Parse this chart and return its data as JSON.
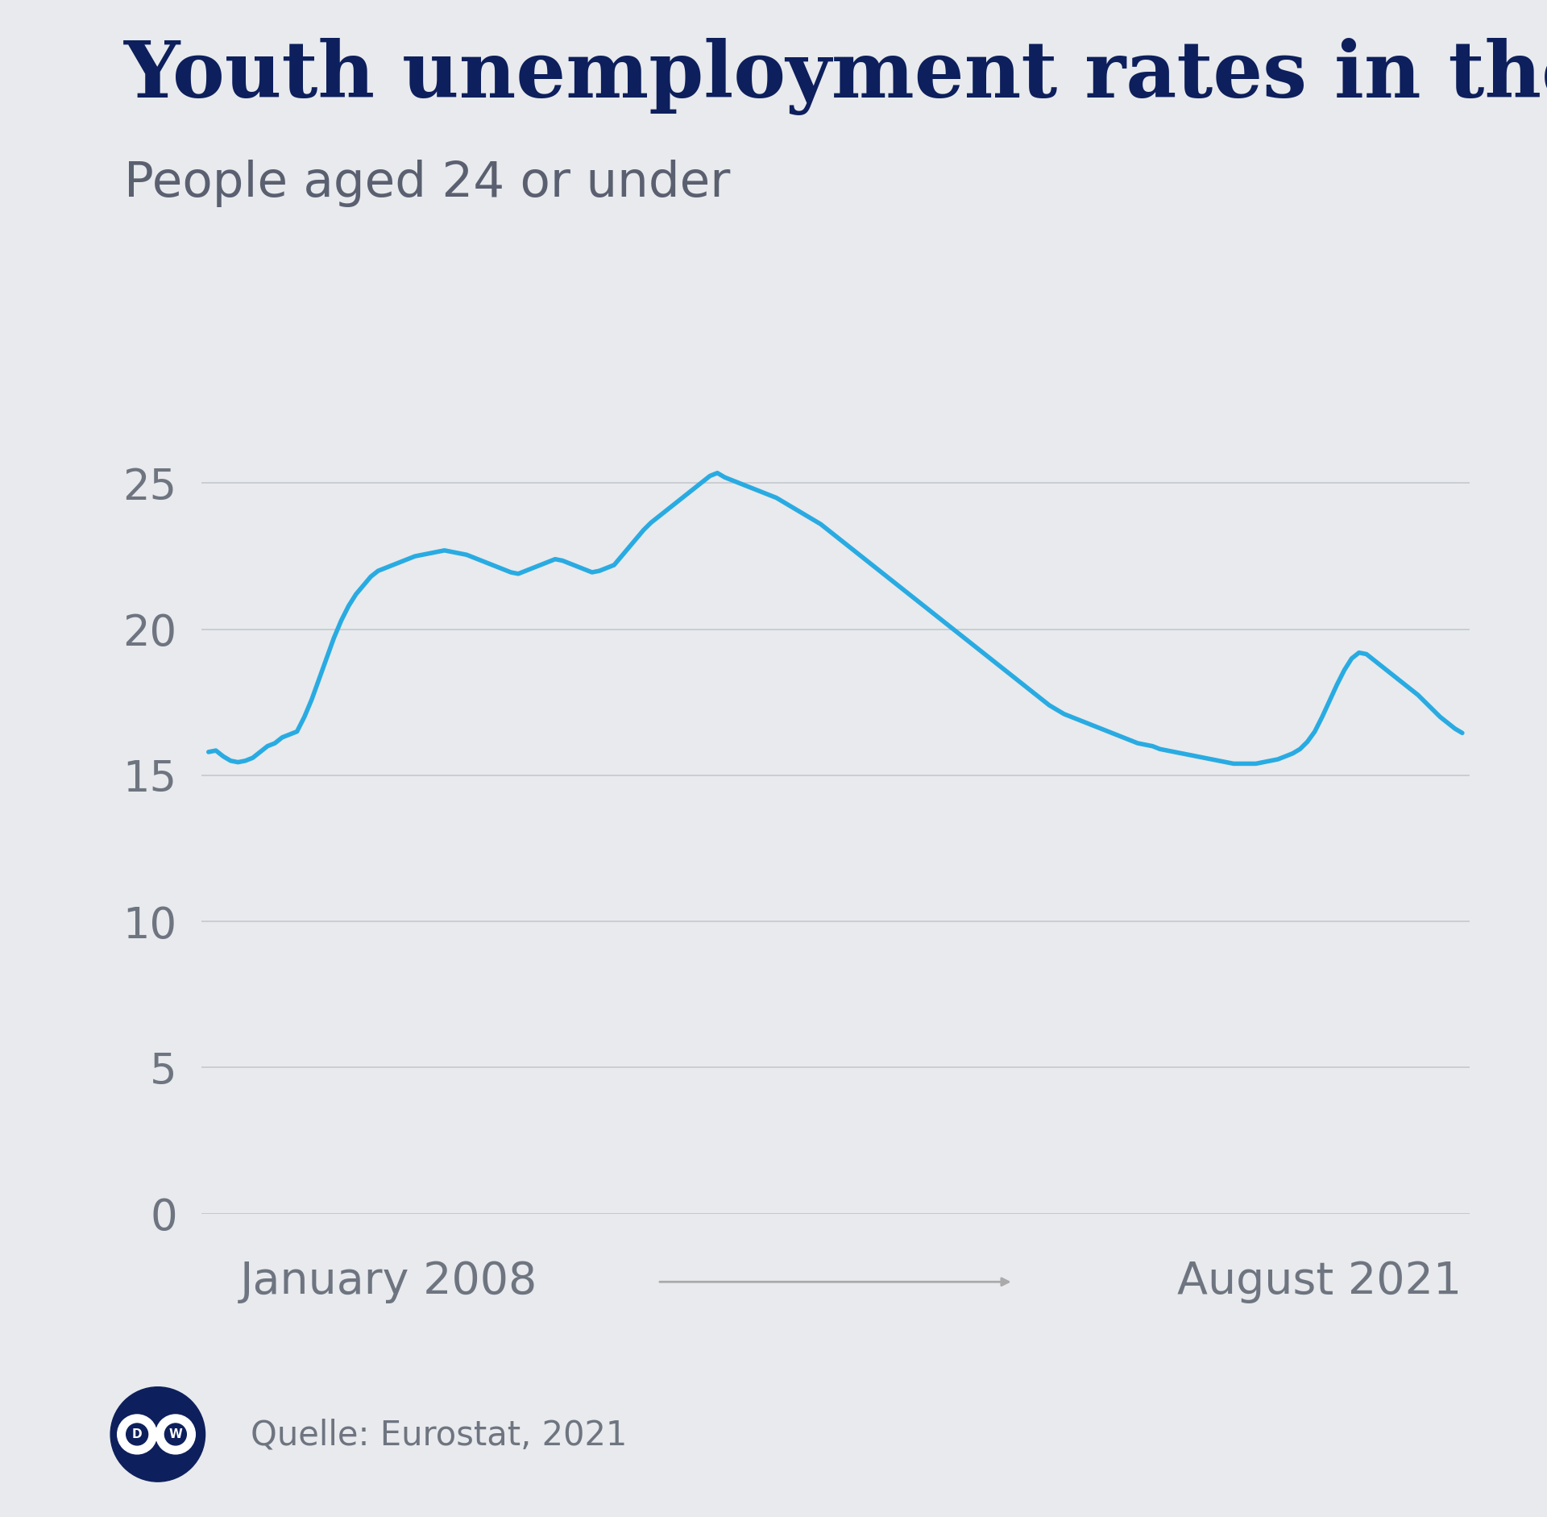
{
  "title": "Youth unemployment rates in the EU",
  "subtitle": "People aged 24 or under",
  "source_label": "Quelle: Eurostat, 2021",
  "x_label_left": "January 2008",
  "x_label_right": "August 2021",
  "line_color": "#29ABE2",
  "background_color": "#E8EAED",
  "title_color": "#0D1F5C",
  "subtitle_color": "#5A6070",
  "tick_color": "#6E7580",
  "grid_color": "#C5C8CE",
  "arrow_color": "#AAAAAA",
  "ylim": [
    0,
    27
  ],
  "yticks": [
    0,
    5,
    10,
    15,
    20,
    25
  ],
  "line_width": 4.0,
  "data": [
    15.8,
    15.85,
    15.65,
    15.5,
    15.45,
    15.5,
    15.6,
    15.8,
    16.0,
    16.1,
    16.3,
    16.4,
    16.5,
    17.0,
    17.6,
    18.3,
    19.0,
    19.7,
    20.3,
    20.8,
    21.2,
    21.5,
    21.8,
    22.0,
    22.1,
    22.2,
    22.3,
    22.4,
    22.5,
    22.55,
    22.6,
    22.65,
    22.7,
    22.65,
    22.6,
    22.55,
    22.45,
    22.35,
    22.25,
    22.15,
    22.05,
    21.95,
    21.9,
    22.0,
    22.1,
    22.2,
    22.3,
    22.4,
    22.35,
    22.25,
    22.15,
    22.05,
    21.95,
    22.0,
    22.1,
    22.2,
    22.5,
    22.8,
    23.1,
    23.4,
    23.65,
    23.85,
    24.05,
    24.25,
    24.45,
    24.65,
    24.85,
    25.05,
    25.25,
    25.35,
    25.2,
    25.1,
    25.0,
    24.9,
    24.8,
    24.7,
    24.6,
    24.5,
    24.35,
    24.2,
    24.05,
    23.9,
    23.75,
    23.6,
    23.4,
    23.2,
    23.0,
    22.8,
    22.6,
    22.4,
    22.2,
    22.0,
    21.8,
    21.6,
    21.4,
    21.2,
    21.0,
    20.8,
    20.6,
    20.4,
    20.2,
    20.0,
    19.8,
    19.6,
    19.4,
    19.2,
    19.0,
    18.8,
    18.6,
    18.4,
    18.2,
    18.0,
    17.8,
    17.6,
    17.4,
    17.25,
    17.1,
    17.0,
    16.9,
    16.8,
    16.7,
    16.6,
    16.5,
    16.4,
    16.3,
    16.2,
    16.1,
    16.05,
    16.0,
    15.9,
    15.85,
    15.8,
    15.75,
    15.7,
    15.65,
    15.6,
    15.55,
    15.5,
    15.45,
    15.4,
    15.4,
    15.4,
    15.4,
    15.45,
    15.5,
    15.55,
    15.65,
    15.75,
    15.9,
    16.15,
    16.5,
    17.0,
    17.55,
    18.1,
    18.6,
    19.0,
    19.2,
    19.15,
    18.95,
    18.75,
    18.55,
    18.35,
    18.15,
    17.95,
    17.75,
    17.5,
    17.25,
    17.0,
    16.8,
    16.6,
    16.45
  ]
}
